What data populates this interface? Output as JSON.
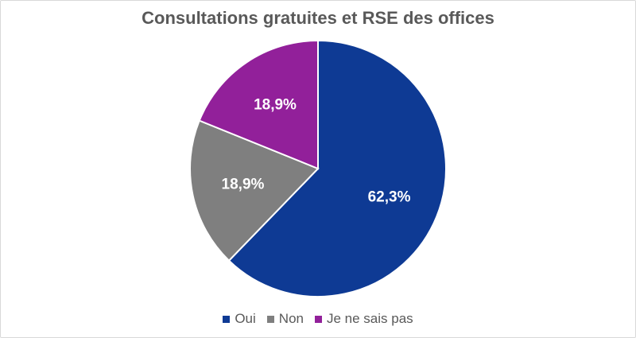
{
  "chart_data": {
    "type": "pie",
    "title": "Consultations gratuites et RSE des offices",
    "slices": [
      {
        "label": "Oui",
        "value": 62.3,
        "display": "62,3%",
        "color": "#0e3a94"
      },
      {
        "label": "Non",
        "value": 18.9,
        "display": "18,9%",
        "color": "#7f7f7f"
      },
      {
        "label": "Je ne sais pas",
        "value": 18.9,
        "display": "18,9%",
        "color": "#92209a"
      }
    ],
    "legend_position": "bottom"
  }
}
